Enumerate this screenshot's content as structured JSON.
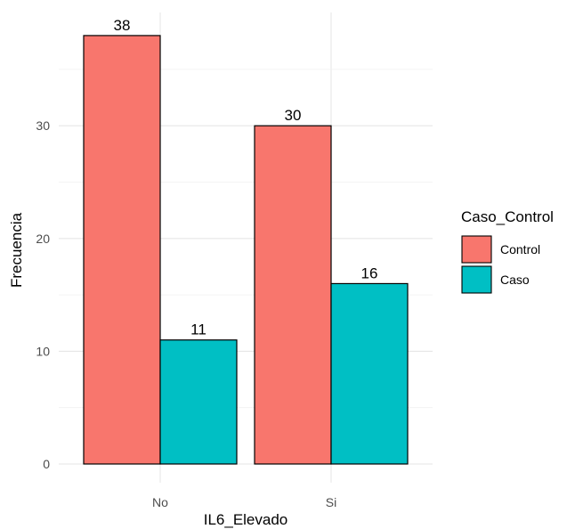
{
  "chart_data": {
    "type": "bar",
    "categories": [
      "No",
      "Si"
    ],
    "series": [
      {
        "name": "Control",
        "color": "#F8766D",
        "values": [
          38,
          30
        ]
      },
      {
        "name": "Caso",
        "color": "#00BFC4",
        "values": [
          11,
          16
        ]
      }
    ],
    "xlabel": "IL6_Elevado",
    "ylabel": "Frecuencia",
    "ylim": [
      0,
      39.9
    ],
    "yticks": [
      0,
      10,
      20,
      30
    ],
    "grid": true,
    "legend": {
      "title": "Caso_Control",
      "position": "right"
    }
  }
}
